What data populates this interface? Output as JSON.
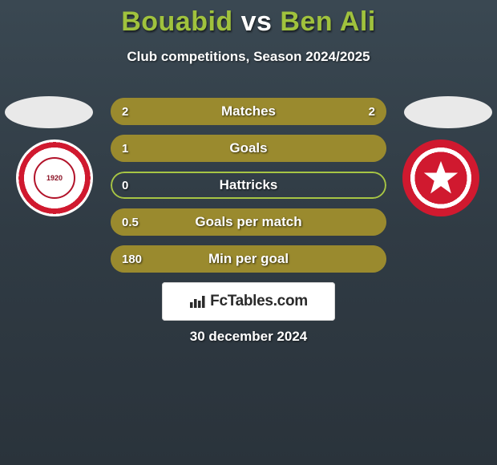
{
  "title": {
    "player1": "Bouabid",
    "vs": "vs",
    "player2": "Ben Ali",
    "player1_color": "#a0c23d",
    "vs_color": "#ffffff",
    "player2_color": "#a0c23d"
  },
  "subtitle": "Club competitions, Season 2024/2025",
  "date": "30 december 2024",
  "brand": "FcTables.com",
  "colors": {
    "fill_olive": "#9a8a2e",
    "border_green": "#a7c544",
    "empty_track": "rgba(0,0,0,0)"
  },
  "stats": [
    {
      "label": "Matches",
      "left_val": "2",
      "right_val": "2",
      "left_pct": 50,
      "right_pct": 50,
      "left_filled": true,
      "right_filled": true
    },
    {
      "label": "Goals",
      "left_val": "1",
      "right_val": "",
      "left_pct": 100,
      "right_pct": 0,
      "left_filled": true,
      "right_filled": false
    },
    {
      "label": "Hattricks",
      "left_val": "0",
      "right_val": "",
      "left_pct": 0,
      "right_pct": 0,
      "left_filled": false,
      "right_filled": false
    },
    {
      "label": "Goals per match",
      "left_val": "0.5",
      "right_val": "",
      "left_pct": 100,
      "right_pct": 0,
      "left_filled": true,
      "right_filled": false
    },
    {
      "label": "Min per goal",
      "left_val": "180",
      "right_val": "",
      "left_pct": 100,
      "right_pct": 0,
      "left_filled": true,
      "right_filled": false
    }
  ]
}
